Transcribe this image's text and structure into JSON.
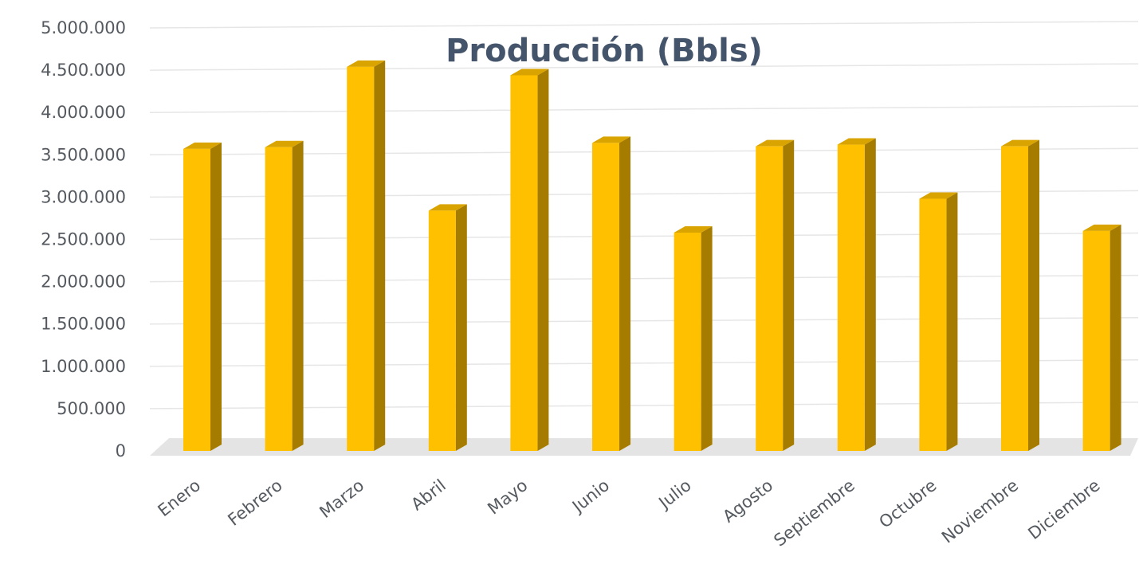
{
  "chart_data": {
    "type": "bar",
    "title": "Producción (Bbls)",
    "xlabel": "",
    "ylabel": "",
    "categories": [
      "Enero",
      "Febrero",
      "Marzo",
      "Abril",
      "Mayo",
      "Junio",
      "Julio",
      "Agosto",
      "Septiembre",
      "Octubre",
      "Noviembre",
      "Diciembre"
    ],
    "values": [
      3570000,
      3590000,
      4540000,
      2840000,
      4440000,
      3640000,
      2580000,
      3600000,
      3620000,
      2980000,
      3600000,
      2600000
    ],
    "ylim": [
      0,
      5000000
    ],
    "yticks": [
      0,
      500000,
      1000000,
      1500000,
      2000000,
      2500000,
      3000000,
      3500000,
      4000000,
      4500000,
      5000000
    ],
    "ytick_labels": [
      "0",
      "500.000",
      "1.000.000",
      "1.500.000",
      "2.000.000",
      "2.500.000",
      "3.000.000",
      "3.500.000",
      "4.000.000",
      "4.500.000",
      "5.000.000"
    ],
    "grid": true,
    "legend": "none",
    "style": "3d-column",
    "colors": {
      "bar_front": "#ffc000",
      "bar_side": "#a67c00",
      "bar_top": "#d9a300",
      "floor": "#e4e4e4",
      "grid": "#e6e6e6",
      "title": "#44546a",
      "tick_text": "#555a60"
    }
  }
}
